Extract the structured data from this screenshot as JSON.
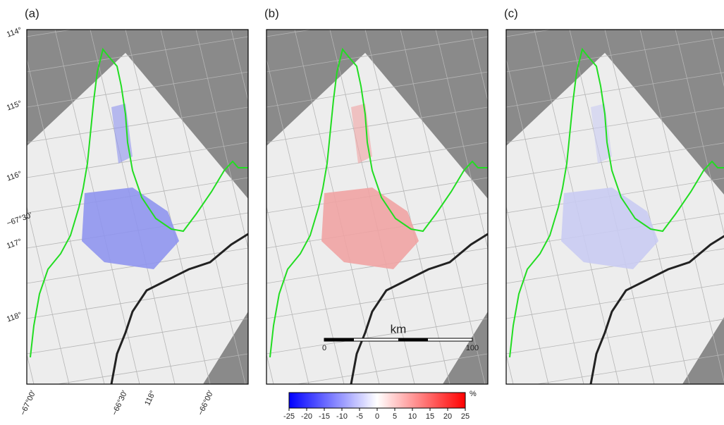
{
  "panels": [
    {
      "label": "(a)",
      "anomaly": "blue"
    },
    {
      "label": "(b)",
      "anomaly": "red"
    },
    {
      "label": "(c)",
      "anomaly": "lightblue"
    }
  ],
  "lat_labels": [
    "114°",
    "115°",
    "116°",
    "−67°30′",
    "117°",
    "118°"
  ],
  "bottom_labels": [
    "−67°00′",
    "−66°30′",
    "118°",
    "−66°00′"
  ],
  "scale_bar": {
    "unit": "km",
    "ticks": [
      0,
      100
    ]
  },
  "colorbar": {
    "lim": [
      -25,
      25
    ],
    "ticks": [
      -25,
      -20,
      -15,
      -10,
      -5,
      0,
      5,
      10,
      15,
      20,
      25
    ],
    "unit": "%",
    "colors": [
      "#0000ff",
      "#ffffff",
      "#ff0000"
    ]
  }
}
